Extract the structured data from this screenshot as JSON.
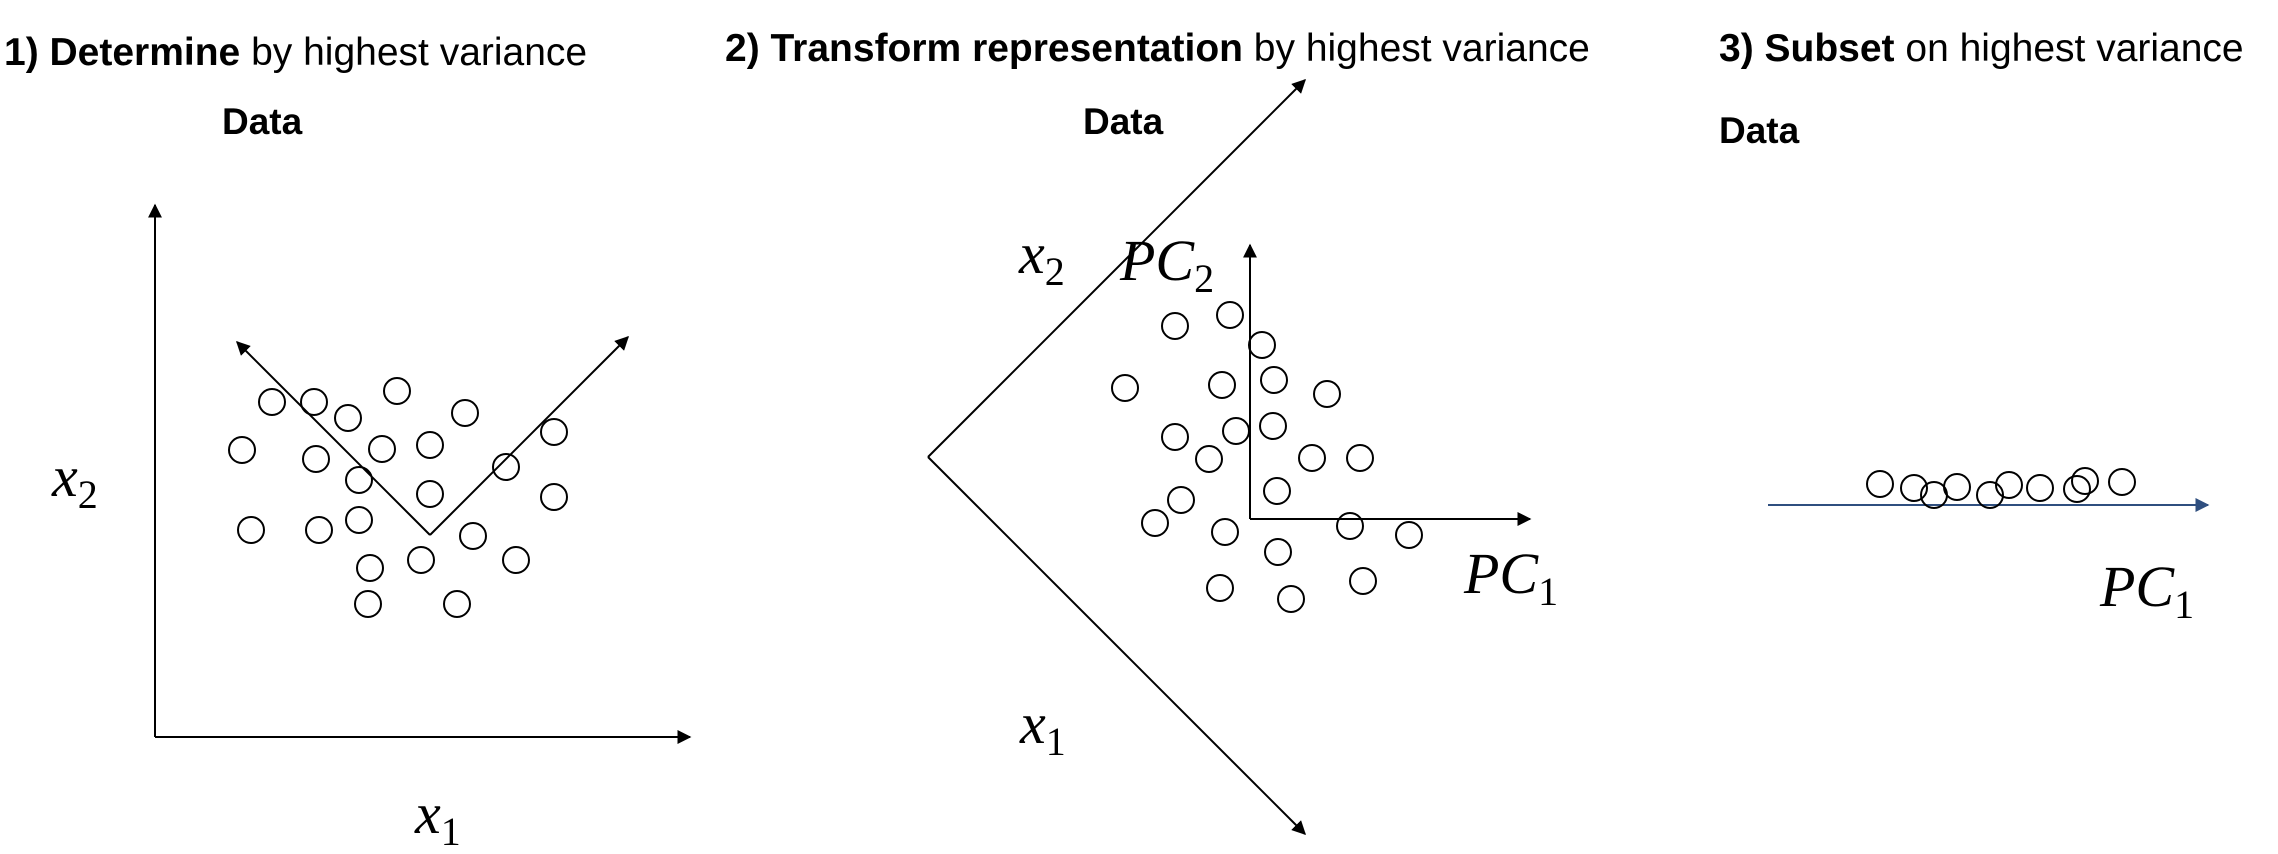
{
  "panels": [
    {
      "heading_bold": "1) Determine",
      "heading_rest": " by highest variance",
      "data_label": "Data",
      "axis_x_var": "x",
      "axis_x_sub": "1",
      "axis_y_var": "x",
      "axis_y_sub": "2"
    },
    {
      "heading_bold": "2) Transform representation",
      "heading_rest": " by highest variance",
      "data_label": "Data",
      "axis_x_var": "x",
      "axis_x_sub": "1",
      "axis_y_var": "x",
      "axis_y_sub": "2",
      "pc1_var": "PC",
      "pc1_sub": "1",
      "pc2_var": "PC",
      "pc2_sub": "2"
    },
    {
      "heading_bold": "3) Subset",
      "heading_rest": " on highest variance",
      "data_label": "Data",
      "pc1_var": "PC",
      "pc1_sub": "1"
    }
  ],
  "colors": {
    "ink": "#000000",
    "pc_axis_line": "#2f4f7f"
  }
}
